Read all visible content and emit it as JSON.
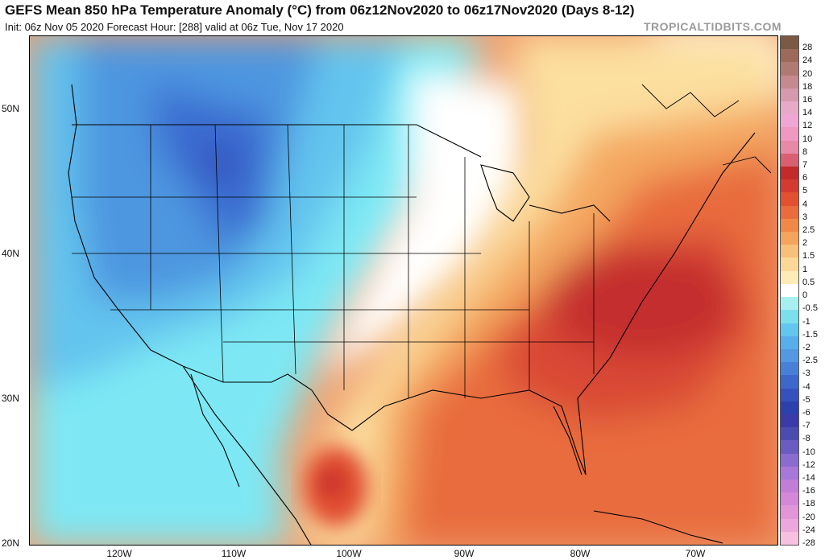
{
  "header": {
    "title": "GEFS Mean 850 hPa Temperature Anomaly (°C) from 06z12Nov2020 to 06z17Nov2020 (Days 8-12)",
    "subtitle": "Init: 06z Nov 05 2020   Forecast Hour: [288]   valid at 06z Tue, Nov 17 2020",
    "brand": "TROPICALTIDBITS.COM"
  },
  "axes": {
    "lat_labels": [
      "50N",
      "40N",
      "30N",
      "20N"
    ],
    "lon_labels": [
      "120W",
      "110W",
      "100W",
      "90W",
      "80W",
      "70W"
    ]
  },
  "colorbar": {
    "labels": [
      "28",
      "24",
      "20",
      "18",
      "16",
      "14",
      "12",
      "10",
      "8",
      "7",
      "6",
      "5",
      "4",
      "3",
      "2.5",
      "2",
      "1.5",
      "1",
      "0.5",
      "0",
      "-0.5",
      "-1",
      "-1.5",
      "-2",
      "-2.5",
      "-3",
      "-4",
      "-5",
      "-6",
      "-7",
      "-8",
      "-10",
      "-12",
      "-14",
      "-16",
      "-18",
      "-20",
      "-24",
      "-28"
    ],
    "colors": [
      "#7a5a44",
      "#9c6a5a",
      "#b07a74",
      "#c48a90",
      "#d69aae",
      "#e6aac8",
      "#f0a6d4",
      "#ee98c2",
      "#e68aa8",
      "#d86070",
      "#c42a2a",
      "#d43a30",
      "#e25030",
      "#ea6c3c",
      "#f08848",
      "#f4a45c",
      "#f8c078",
      "#fcd898",
      "#fdebb8",
      "#ffffff",
      "#a8f0f0",
      "#7ce0ec",
      "#62c6ee",
      "#58aeea",
      "#5498e2",
      "#4880d8",
      "#3c68cc",
      "#3452be",
      "#2c40ae",
      "#3a3aa8",
      "#4c4cb0",
      "#6a5cc0",
      "#8a6cd0",
      "#a878d8",
      "#c07ed8",
      "#d488d8",
      "#e296d8",
      "#eca8dc",
      "#f6c0e0"
    ]
  }
}
